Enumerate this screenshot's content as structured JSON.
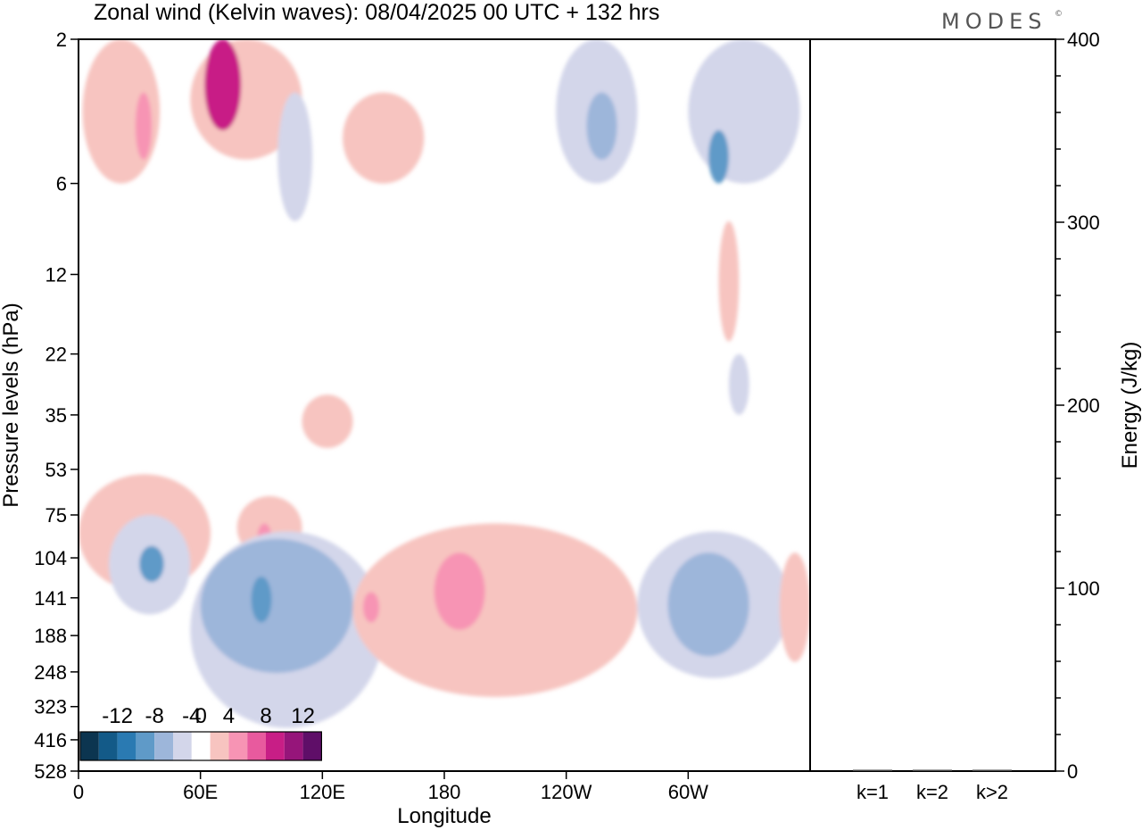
{
  "header": {
    "title": "Zonal wind (Kelvin waves):  08/04/2025  00 UTC  + 132 hrs",
    "logo": "MODES",
    "logo_mark": "©"
  },
  "chart_data": [
    {
      "type": "heatmap",
      "title": "Zonal wind (Kelvin waves):  08/04/2025  00 UTC  + 132 hrs",
      "xlabel": "Longitude",
      "ylabel": "Pressure levels (hPa)",
      "x_ticks": [
        "0",
        "60E",
        "120E",
        "180",
        "120W",
        "60W"
      ],
      "x_tick_values": [
        0,
        60,
        120,
        180,
        240,
        300
      ],
      "xlim": [
        0,
        360
      ],
      "y_ticks": [
        "2",
        "6",
        "12",
        "22",
        "35",
        "53",
        "75",
        "104",
        "141",
        "188",
        "248",
        "323",
        "416",
        "528"
      ],
      "y_scale": "log",
      "ylim": [
        528,
        2
      ],
      "colorbar": {
        "labels": [
          "-12",
          "-8",
          "-4",
          "0",
          "4",
          "8",
          "12"
        ],
        "label_values": [
          -12,
          -8,
          -4,
          0,
          4,
          8,
          12
        ],
        "levels": [
          -14,
          -12,
          -10,
          -8,
          -6,
          -4,
          -2,
          2,
          4,
          6,
          8,
          10,
          12,
          14
        ],
        "colors": [
          "#0c3550",
          "#135a88",
          "#2a7ab2",
          "#5f9ac8",
          "#9db6da",
          "#d3d6ea",
          "#ffffff",
          "#f7c4c0",
          "#f794b4",
          "#e85a9e",
          "#c81e86",
          "#96157a",
          "#5f0e68"
        ]
      },
      "features": [
        {
          "kind": "positive",
          "level": 1,
          "lon": [
            2,
            40
          ],
          "p": [
            2,
            6
          ]
        },
        {
          "kind": "positive",
          "level": 2,
          "lon": [
            28,
            36
          ],
          "p": [
            3,
            5
          ]
        },
        {
          "kind": "positive",
          "level": 1,
          "lon": [
            55,
            110
          ],
          "p": [
            2,
            5
          ]
        },
        {
          "kind": "positive",
          "level": 4,
          "lon": [
            62,
            80
          ],
          "p": [
            2,
            4
          ]
        },
        {
          "kind": "positive",
          "level": 1,
          "lon": [
            130,
            170
          ],
          "p": [
            3,
            6
          ]
        },
        {
          "kind": "negative",
          "level": 1,
          "lon": [
            98,
            115
          ],
          "p": [
            3,
            8
          ]
        },
        {
          "kind": "negative",
          "level": 1,
          "lon": [
            235,
            275
          ],
          "p": [
            2,
            6
          ]
        },
        {
          "kind": "negative",
          "level": 2,
          "lon": [
            250,
            265
          ],
          "p": [
            3,
            5
          ]
        },
        {
          "kind": "negative",
          "level": 1,
          "lon": [
            300,
            355
          ],
          "p": [
            2,
            6
          ]
        },
        {
          "kind": "negative",
          "level": 3,
          "lon": [
            310,
            320
          ],
          "p": [
            4,
            6
          ]
        },
        {
          "kind": "positive",
          "level": 1,
          "lon": [
            315,
            325
          ],
          "p": [
            8,
            20
          ]
        },
        {
          "kind": "positive",
          "level": 1,
          "lon": [
            110,
            135
          ],
          "p": [
            30,
            45
          ]
        },
        {
          "kind": "negative",
          "level": 1,
          "lon": [
            320,
            330
          ],
          "p": [
            22,
            35
          ]
        },
        {
          "kind": "positive",
          "level": 1,
          "lon": [
            0,
            65
          ],
          "p": [
            55,
            135
          ]
        },
        {
          "kind": "negative",
          "level": 1,
          "lon": [
            15,
            55
          ],
          "p": [
            75,
            160
          ]
        },
        {
          "kind": "negative",
          "level": 3,
          "lon": [
            30,
            42
          ],
          "p": [
            95,
            125
          ]
        },
        {
          "kind": "positive",
          "level": 1,
          "lon": [
            78,
            110
          ],
          "p": [
            65,
            105
          ]
        },
        {
          "kind": "positive",
          "level": 2,
          "lon": [
            88,
            95
          ],
          "p": [
            80,
            100
          ]
        },
        {
          "kind": "negative",
          "level": 1,
          "lon": [
            55,
            150
          ],
          "p": [
            85,
            380
          ]
        },
        {
          "kind": "negative",
          "level": 2,
          "lon": [
            60,
            135
          ],
          "p": [
            90,
            250
          ]
        },
        {
          "kind": "negative",
          "level": 3,
          "lon": [
            85,
            95
          ],
          "p": [
            120,
            170
          ]
        },
        {
          "kind": "positive",
          "level": 1,
          "lon": [
            135,
            275
          ],
          "p": [
            80,
            300
          ]
        },
        {
          "kind": "positive",
          "level": 2,
          "lon": [
            175,
            200
          ],
          "p": [
            100,
            180
          ]
        },
        {
          "kind": "positive",
          "level": 2,
          "lon": [
            140,
            148
          ],
          "p": [
            135,
            170
          ]
        },
        {
          "kind": "negative",
          "level": 1,
          "lon": [
            275,
            350
          ],
          "p": [
            85,
            260
          ]
        },
        {
          "kind": "negative",
          "level": 2,
          "lon": [
            290,
            330
          ],
          "p": [
            100,
            220
          ]
        },
        {
          "kind": "positive",
          "level": 1,
          "lon": [
            345,
            360
          ],
          "p": [
            100,
            230
          ]
        }
      ]
    },
    {
      "type": "bar",
      "categories": [
        "k=1",
        "k=2",
        "k>2"
      ],
      "values": [
        0.5,
        0.5,
        0.5
      ],
      "ylabel": "Energy (J/kg)",
      "ylim": [
        0,
        400
      ],
      "y_ticks": [
        "0",
        "100",
        "200",
        "300",
        "400"
      ],
      "y_tick_values": [
        0,
        100,
        200,
        300,
        400
      ]
    }
  ]
}
